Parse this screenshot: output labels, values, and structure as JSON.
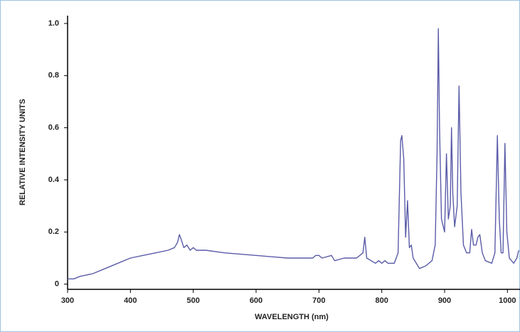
{
  "chart_data": {
    "type": "line",
    "xlabel": "WAVELENGTH (nm)",
    "ylabel": "RELATIVE INTENSITY UNITS",
    "x": [
      300,
      310,
      320,
      340,
      360,
      380,
      400,
      420,
      440,
      460,
      470,
      475,
      478,
      481,
      485,
      490,
      495,
      500,
      505,
      520,
      550,
      600,
      650,
      690,
      695,
      700,
      705,
      720,
      725,
      740,
      760,
      770,
      773,
      776,
      790,
      795,
      800,
      805,
      810,
      820,
      826,
      830,
      832,
      835,
      838,
      841,
      844,
      847,
      850,
      860,
      870,
      880,
      885,
      888,
      890,
      892,
      895,
      900,
      903,
      906,
      909,
      911,
      913,
      916,
      920,
      923,
      926,
      930,
      935,
      940,
      943,
      946,
      950,
      953,
      956,
      960,
      965,
      975,
      980,
      984,
      987,
      990,
      993,
      996,
      999,
      1003,
      1010,
      1015,
      1018
    ],
    "series": [
      {
        "color": "#5a5ca8",
        "values": [
          0.02,
          0.02,
          0.03,
          0.04,
          0.06,
          0.08,
          0.1,
          0.11,
          0.12,
          0.13,
          0.14,
          0.16,
          0.19,
          0.17,
          0.14,
          0.15,
          0.13,
          0.14,
          0.13,
          0.13,
          0.12,
          0.11,
          0.1,
          0.1,
          0.11,
          0.11,
          0.1,
          0.11,
          0.09,
          0.1,
          0.1,
          0.12,
          0.18,
          0.1,
          0.08,
          0.09,
          0.08,
          0.09,
          0.08,
          0.08,
          0.12,
          0.55,
          0.57,
          0.48,
          0.18,
          0.32,
          0.14,
          0.15,
          0.1,
          0.06,
          0.07,
          0.09,
          0.15,
          0.5,
          0.98,
          0.6,
          0.25,
          0.2,
          0.5,
          0.25,
          0.3,
          0.6,
          0.35,
          0.22,
          0.3,
          0.76,
          0.35,
          0.15,
          0.12,
          0.12,
          0.21,
          0.15,
          0.15,
          0.18,
          0.19,
          0.12,
          0.09,
          0.08,
          0.12,
          0.57,
          0.25,
          0.12,
          0.12,
          0.54,
          0.2,
          0.1,
          0.08,
          0.1,
          0.13
        ]
      }
    ],
    "xlim": [
      300,
      1020
    ],
    "ylim": [
      -0.02,
      1.03
    ],
    "xticks": [
      300,
      400,
      500,
      600,
      700,
      800,
      900,
      1000
    ],
    "yticks": [
      0,
      0.2,
      0.4,
      0.6,
      0.8,
      {
        "value": 1,
        "label": "1.0"
      }
    ],
    "grid": false
  }
}
